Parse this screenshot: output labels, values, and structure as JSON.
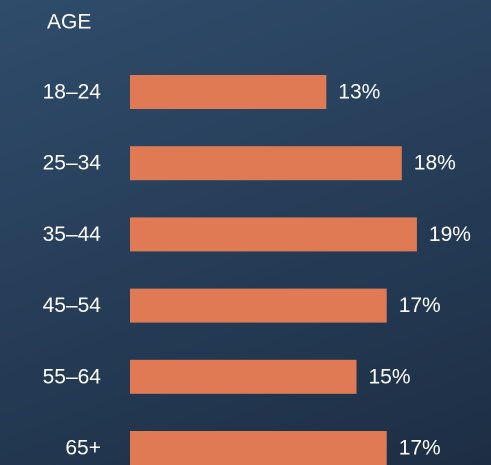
{
  "chart_data": {
    "type": "bar",
    "orientation": "horizontal",
    "title": "AGE",
    "categories": [
      "18–24",
      "25–34",
      "35–44",
      "45–54",
      "55–64",
      "65+"
    ],
    "values": [
      13,
      18,
      19,
      17,
      15,
      17
    ],
    "value_labels": [
      "13%",
      "18%",
      "19%",
      "17%",
      "15%",
      "17%"
    ],
    "color": "#e07a55"
  }
}
